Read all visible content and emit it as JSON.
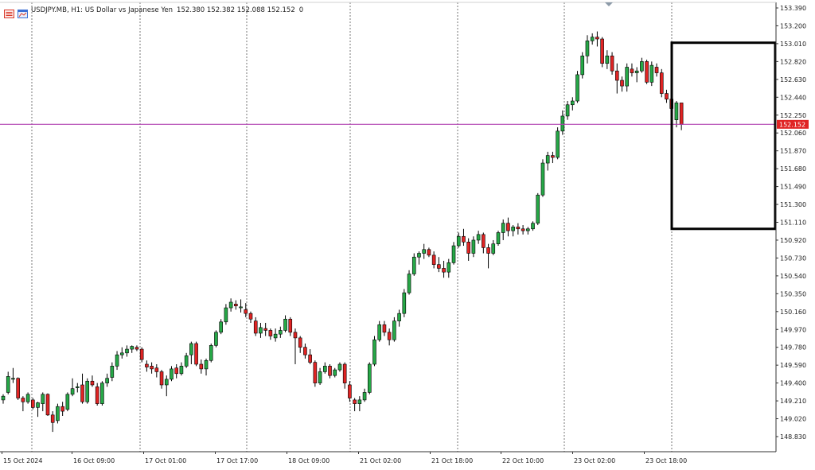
{
  "header": {
    "symbol_text": "USDJPY.MB, H1:  US Dollar vs Japanese Yen",
    "ohlc": "152.380 152.382 152.088 152.152",
    "volume": "0",
    "icon_colors": {
      "left": "#d93a2b",
      "right": "#3b6fd4"
    }
  },
  "chart_data": {
    "type": "candlestick",
    "symbol": "USDJPY.MB",
    "timeframe": "H1",
    "title": "USDJPY.MB, H1:  US Dollar vs Japanese Yen",
    "ylim": [
      148.75,
      153.45
    ],
    "x_tick_labels": [
      "15 Oct 2024",
      "16 Oct 09:00",
      "17 Oct 01:00",
      "17 Oct 17:00",
      "18 Oct 09:00",
      "21 Oct 02:00",
      "21 Oct 18:00",
      "22 Oct 10:00",
      "23 Oct 02:00",
      "23 Oct 18:00"
    ],
    "y_tick_labels": [
      153.39,
      153.2,
      153.01,
      152.82,
      152.63,
      152.44,
      152.25,
      152.06,
      151.87,
      151.68,
      151.49,
      151.3,
      151.11,
      150.92,
      150.73,
      150.54,
      150.35,
      150.16,
      149.97,
      149.78,
      149.59,
      149.4,
      149.21,
      149.02,
      148.83
    ],
    "current_price": {
      "label": "152.152",
      "value": 152.152,
      "line_color": "#b040b0",
      "label_bg": "#e02424"
    },
    "colors": {
      "bull": "#26a847",
      "bear": "#e02424",
      "grid": "#555555",
      "axis": "#333333"
    },
    "annotation_box": {
      "price_top": 153.02,
      "price_bottom": 151.04
    },
    "candles": [
      [
        149.22,
        149.28,
        149.18,
        149.26
      ],
      [
        149.3,
        149.52,
        149.28,
        149.47
      ],
      [
        149.44,
        149.56,
        149.4,
        149.45
      ],
      [
        149.45,
        149.46,
        149.22,
        149.24
      ],
      [
        149.24,
        149.26,
        149.1,
        149.2
      ],
      [
        149.2,
        149.3,
        149.18,
        149.28
      ],
      [
        149.22,
        149.24,
        149.12,
        149.14
      ],
      [
        149.14,
        149.2,
        149.04,
        149.19
      ],
      [
        149.18,
        149.3,
        149.1,
        149.28
      ],
      [
        149.28,
        149.29,
        149.05,
        149.06
      ],
      [
        149.06,
        149.1,
        148.88,
        148.98
      ],
      [
        149.0,
        149.18,
        148.97,
        149.15
      ],
      [
        149.15,
        149.2,
        149.05,
        149.1
      ],
      [
        149.12,
        149.3,
        149.1,
        149.28
      ],
      [
        149.28,
        149.45,
        149.26,
        149.34
      ],
      [
        149.35,
        149.4,
        149.3,
        149.36
      ],
      [
        149.38,
        149.5,
        149.18,
        149.2
      ],
      [
        149.2,
        149.45,
        149.18,
        149.42
      ],
      [
        149.42,
        149.48,
        149.36,
        149.38
      ],
      [
        149.36,
        149.4,
        149.16,
        149.18
      ],
      [
        149.18,
        149.42,
        149.16,
        149.4
      ],
      [
        149.4,
        149.5,
        149.36,
        149.45
      ],
      [
        149.46,
        149.62,
        149.42,
        149.58
      ],
      [
        149.58,
        149.74,
        149.54,
        149.7
      ],
      [
        149.7,
        149.78,
        149.66,
        149.72
      ],
      [
        149.72,
        149.8,
        149.68,
        149.76
      ],
      [
        149.76,
        149.8,
        149.72,
        149.79
      ],
      [
        149.78,
        149.8,
        149.74,
        149.76
      ],
      [
        149.76,
        149.78,
        149.62,
        149.65
      ],
      [
        149.6,
        149.64,
        149.52,
        149.57
      ],
      [
        149.58,
        149.62,
        149.5,
        149.55
      ],
      [
        149.56,
        149.6,
        149.46,
        149.52
      ],
      [
        149.52,
        149.54,
        149.34,
        149.38
      ],
      [
        149.38,
        149.48,
        149.26,
        149.44
      ],
      [
        149.44,
        149.58,
        149.42,
        149.55
      ],
      [
        149.56,
        149.6,
        149.45,
        149.5
      ],
      [
        149.5,
        149.62,
        149.48,
        149.58
      ],
      [
        149.58,
        149.72,
        149.56,
        149.69
      ],
      [
        149.7,
        149.84,
        149.6,
        149.82
      ],
      [
        149.82,
        149.84,
        149.58,
        149.6
      ],
      [
        149.6,
        149.65,
        149.5,
        149.55
      ],
      [
        149.55,
        149.66,
        149.48,
        149.64
      ],
      [
        149.64,
        149.82,
        149.62,
        149.8
      ],
      [
        149.8,
        149.96,
        149.78,
        149.94
      ],
      [
        149.94,
        150.08,
        149.92,
        150.05
      ],
      [
        150.05,
        150.24,
        150.02,
        150.2
      ],
      [
        150.2,
        150.3,
        150.16,
        150.26
      ],
      [
        150.24,
        150.28,
        150.18,
        150.22
      ],
      [
        150.2,
        150.29,
        150.15,
        150.21
      ],
      [
        150.18,
        150.25,
        150.1,
        150.14
      ],
      [
        150.14,
        150.16,
        150.04,
        150.08
      ],
      [
        150.06,
        150.1,
        149.9,
        149.93
      ],
      [
        149.93,
        150.04,
        149.88,
        149.99
      ],
      [
        149.98,
        150.04,
        149.9,
        149.96
      ],
      [
        149.96,
        149.98,
        149.86,
        149.9
      ],
      [
        149.88,
        149.98,
        149.84,
        149.92
      ],
      [
        149.92,
        150.0,
        149.88,
        149.96
      ],
      [
        149.96,
        150.12,
        149.94,
        150.08
      ],
      [
        150.08,
        150.1,
        149.9,
        149.94
      ],
      [
        149.94,
        149.98,
        149.6,
        149.88
      ],
      [
        149.88,
        149.9,
        149.72,
        149.78
      ],
      [
        149.78,
        149.82,
        149.66,
        149.7
      ],
      [
        149.7,
        149.76,
        149.6,
        149.62
      ],
      [
        149.62,
        149.64,
        149.36,
        149.4
      ],
      [
        149.4,
        149.56,
        149.38,
        149.52
      ],
      [
        149.52,
        149.62,
        149.5,
        149.58
      ],
      [
        149.58,
        149.6,
        149.45,
        149.48
      ],
      [
        149.48,
        149.56,
        149.46,
        149.54
      ],
      [
        149.54,
        149.62,
        149.52,
        149.6
      ],
      [
        149.6,
        149.62,
        149.34,
        149.4
      ],
      [
        149.38,
        149.42,
        149.2,
        149.24
      ],
      [
        149.22,
        149.24,
        149.1,
        149.18
      ],
      [
        149.18,
        149.26,
        149.1,
        149.22
      ],
      [
        149.22,
        149.34,
        149.2,
        149.3
      ],
      [
        149.3,
        149.62,
        149.28,
        149.6
      ],
      [
        149.6,
        149.9,
        149.58,
        149.86
      ],
      [
        149.86,
        150.06,
        149.84,
        150.02
      ],
      [
        150.02,
        150.06,
        149.9,
        149.94
      ],
      [
        149.94,
        149.98,
        149.8,
        149.86
      ],
      [
        149.86,
        150.1,
        149.84,
        150.06
      ],
      [
        150.06,
        150.18,
        150.0,
        150.14
      ],
      [
        150.14,
        150.4,
        150.1,
        150.36
      ],
      [
        150.36,
        150.6,
        150.34,
        150.56
      ],
      [
        150.56,
        150.78,
        150.54,
        150.74
      ],
      [
        150.74,
        150.8,
        150.66,
        150.78
      ],
      [
        150.78,
        150.88,
        150.72,
        150.82
      ],
      [
        150.82,
        150.84,
        150.74,
        150.76
      ],
      [
        150.76,
        150.8,
        150.62,
        150.66
      ],
      [
        150.66,
        150.74,
        150.58,
        150.62
      ],
      [
        150.62,
        150.7,
        150.52,
        150.58
      ],
      [
        150.58,
        150.72,
        150.52,
        150.68
      ],
      [
        150.68,
        150.9,
        150.66,
        150.86
      ],
      [
        150.86,
        151.0,
        150.84,
        150.96
      ],
      [
        150.96,
        151.04,
        150.86,
        150.9
      ],
      [
        150.9,
        150.94,
        150.7,
        150.78
      ],
      [
        150.78,
        150.96,
        150.74,
        150.92
      ],
      [
        150.92,
        151.02,
        150.88,
        150.98
      ],
      [
        150.98,
        151.0,
        150.78,
        150.84
      ],
      [
        150.84,
        150.88,
        150.62,
        150.78
      ],
      [
        150.78,
        150.92,
        150.76,
        150.88
      ],
      [
        150.88,
        151.02,
        150.86,
        151.0
      ],
      [
        151.0,
        151.14,
        150.92,
        151.1
      ],
      [
        151.1,
        151.16,
        150.96,
        151.02
      ],
      [
        151.02,
        151.08,
        150.96,
        151.06
      ],
      [
        151.06,
        151.1,
        150.98,
        151.04
      ],
      [
        151.04,
        151.08,
        150.98,
        151.02
      ],
      [
        151.02,
        151.06,
        150.98,
        151.04
      ],
      [
        151.04,
        151.12,
        151.02,
        151.1
      ],
      [
        151.1,
        151.42,
        151.08,
        151.4
      ],
      [
        151.4,
        151.78,
        151.38,
        151.74
      ],
      [
        151.74,
        151.86,
        151.66,
        151.82
      ],
      [
        151.82,
        151.86,
        151.74,
        151.8
      ],
      [
        151.8,
        152.12,
        151.78,
        152.08
      ],
      [
        152.08,
        152.3,
        152.04,
        152.24
      ],
      [
        152.24,
        152.4,
        152.2,
        152.36
      ],
      [
        152.36,
        152.44,
        152.3,
        152.4
      ],
      [
        152.4,
        152.72,
        152.38,
        152.68
      ],
      [
        152.68,
        152.92,
        152.64,
        152.88
      ],
      [
        152.88,
        153.1,
        152.8,
        153.04
      ],
      [
        153.04,
        153.12,
        153.0,
        153.08
      ],
      [
        153.08,
        153.14,
        152.98,
        153.06
      ],
      [
        153.06,
        153.08,
        152.76,
        152.8
      ],
      [
        152.8,
        152.94,
        152.74,
        152.88
      ],
      [
        152.88,
        152.92,
        152.68,
        152.72
      ],
      [
        152.72,
        152.8,
        152.48,
        152.62
      ],
      [
        152.62,
        152.66,
        152.5,
        152.56
      ],
      [
        152.56,
        152.8,
        152.5,
        152.76
      ],
      [
        152.74,
        152.8,
        152.66,
        152.7
      ],
      [
        152.7,
        152.76,
        152.6,
        152.72
      ],
      [
        152.72,
        152.86,
        152.7,
        152.82
      ],
      [
        152.82,
        152.84,
        152.58,
        152.6
      ],
      [
        152.6,
        152.82,
        152.56,
        152.78
      ],
      [
        152.76,
        152.8,
        152.66,
        152.7
      ],
      [
        152.7,
        152.74,
        152.44,
        152.48
      ],
      [
        152.48,
        152.52,
        152.38,
        152.42
      ],
      [
        152.42,
        152.46,
        152.28,
        152.32
      ],
      [
        152.2,
        152.4,
        152.12,
        152.38
      ],
      [
        152.38,
        152.38,
        152.09,
        152.15
      ]
    ]
  }
}
